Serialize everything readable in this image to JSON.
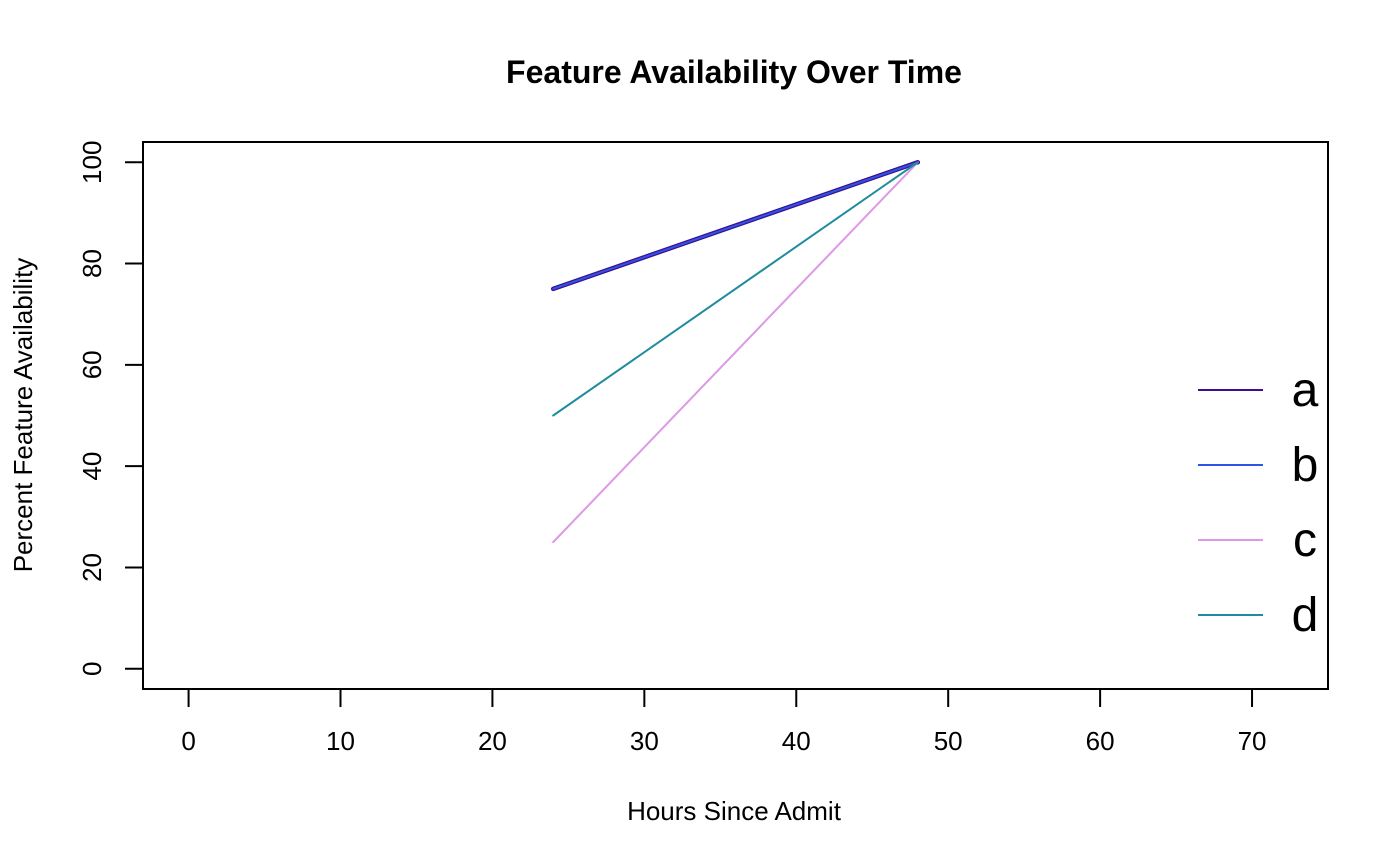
{
  "chart_data": {
    "type": "line",
    "title": "Feature Availability Over Time",
    "xlabel": "Hours Since Admit",
    "ylabel": "Percent Feature Availability",
    "xlim": [
      -3,
      75
    ],
    "ylim": [
      -4,
      104
    ],
    "xticks": [
      0,
      10,
      20,
      30,
      40,
      50,
      60,
      70
    ],
    "yticks": [
      0,
      20,
      40,
      60,
      80,
      100
    ],
    "grid": false,
    "legend_position": "right",
    "series": [
      {
        "name": "a",
        "color": "#3b0f8f",
        "x": [
          24,
          48
        ],
        "y": [
          75,
          100
        ]
      },
      {
        "name": "b",
        "color": "#2f55e6",
        "x": [
          24,
          48
        ],
        "y": [
          75,
          100
        ]
      },
      {
        "name": "c",
        "color": "#dd99e6",
        "x": [
          24,
          48
        ],
        "y": [
          25,
          100
        ]
      },
      {
        "name": "d",
        "color": "#1e8c9c",
        "x": [
          24,
          48
        ],
        "y": [
          50,
          100
        ]
      }
    ]
  }
}
